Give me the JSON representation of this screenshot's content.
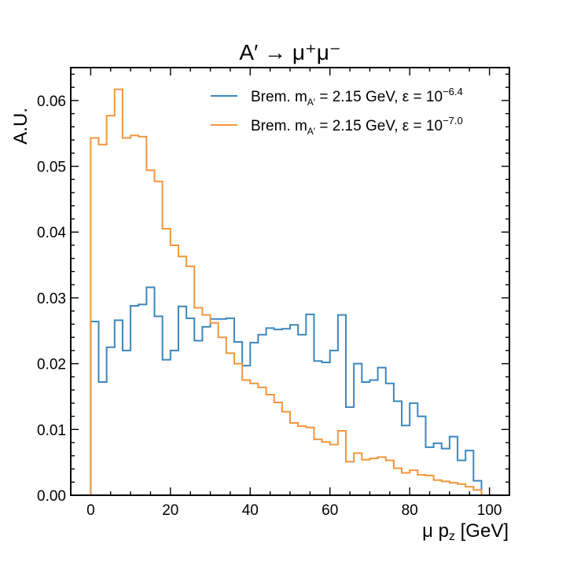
{
  "chart_data": {
    "type": "histogram",
    "title": "A′ → μ⁺μ⁻",
    "xlabel": "μ p",
    "xlabel_sub": "z",
    "xlabel_unit": " [GeV]",
    "ylabel": "A.U.",
    "xlim": [
      -5,
      105
    ],
    "ylim": [
      0,
      0.065
    ],
    "xticks": [
      0,
      20,
      40,
      60,
      80,
      100
    ],
    "yticks": [
      0.0,
      0.01,
      0.02,
      0.03,
      0.04,
      0.05,
      0.06
    ],
    "ytick_labels": [
      "0.00",
      "0.01",
      "0.02",
      "0.03",
      "0.04",
      "0.05",
      "0.06"
    ],
    "legend_position": "top-right",
    "bin_edges_start": 0,
    "bin_width": 2,
    "series": [
      {
        "legend": {
          "prefix": "Brem. m",
          "sub": "A′",
          "mid": " = 2.15 GeV, ε = 10",
          "sup": "−6.4"
        },
        "color": "#3b87be",
        "values": [
          0.0264,
          0.0172,
          0.0225,
          0.0266,
          0.022,
          0.0288,
          0.029,
          0.0316,
          0.0272,
          0.0206,
          0.022,
          0.0287,
          0.0269,
          0.0235,
          0.0256,
          0.0268,
          0.0268,
          0.0269,
          0.0233,
          0.0197,
          0.0232,
          0.0244,
          0.0254,
          0.0252,
          0.0253,
          0.0259,
          0.0244,
          0.0275,
          0.0204,
          0.0202,
          0.022,
          0.0274,
          0.0134,
          0.02,
          0.0172,
          0.0175,
          0.0194,
          0.017,
          0.0143,
          0.0106,
          0.014,
          0.012,
          0.0073,
          0.0079,
          0.0071,
          0.0089,
          0.0053,
          0.0068,
          0.0022
        ]
      },
      {
        "legend": {
          "prefix": "Brem. m",
          "sub": "A′",
          "mid": " = 2.15 GeV, ε = 10",
          "sup": "−7.0"
        },
        "color": "#f4963c",
        "values": [
          0.0543,
          0.0533,
          0.0577,
          0.0617,
          0.0543,
          0.0547,
          0.0545,
          0.0494,
          0.0477,
          0.0405,
          0.038,
          0.0363,
          0.0348,
          0.0285,
          0.0274,
          0.0262,
          0.024,
          0.0216,
          0.02,
          0.0175,
          0.017,
          0.0164,
          0.0153,
          0.0141,
          0.0127,
          0.011,
          0.0105,
          0.0103,
          0.0085,
          0.0081,
          0.0077,
          0.0098,
          0.0051,
          0.0064,
          0.0054,
          0.0056,
          0.0058,
          0.0053,
          0.0041,
          0.0034,
          0.0038,
          0.0031,
          0.003,
          0.0023,
          0.0021,
          0.0019,
          0.0017,
          0.0013,
          0.0008
        ]
      }
    ]
  }
}
